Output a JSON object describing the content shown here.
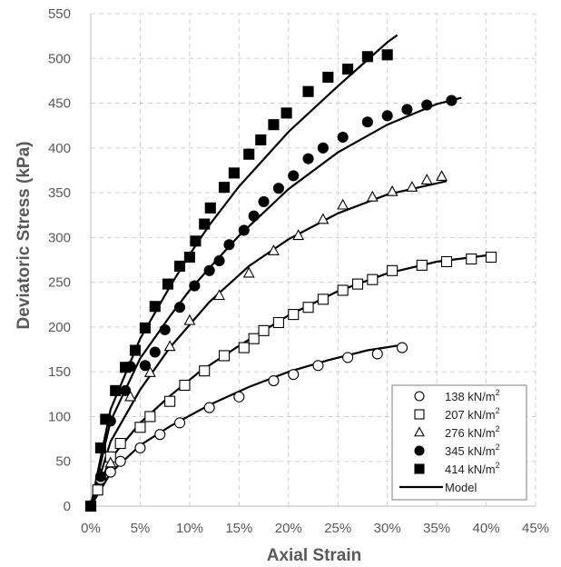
{
  "chart_data": {
    "type": "scatter",
    "title": "",
    "xlabel": "Axial Strain",
    "ylabel": "Deviatoric Stress (kPa)",
    "xlim": [
      0,
      0.45
    ],
    "ylim": [
      0,
      550
    ],
    "x_ticks": [
      0,
      0.05,
      0.1,
      0.15,
      0.2,
      0.25,
      0.3,
      0.35,
      0.4,
      0.45
    ],
    "x_tick_labels": [
      "0%",
      "5%",
      "10%",
      "15%",
      "20%",
      "25%",
      "30%",
      "35%",
      "40%",
      "45%"
    ],
    "y_ticks": [
      0,
      50,
      100,
      150,
      200,
      250,
      300,
      350,
      400,
      450,
      500,
      550
    ],
    "y_tick_labels": [
      "0",
      "50",
      "100",
      "150",
      "200",
      "250",
      "300",
      "350",
      "400",
      "450",
      "500",
      "550"
    ],
    "grid": "dashed",
    "legend_position": "bottom-right",
    "series": [
      {
        "name": "138 kN/m",
        "superscript": "2",
        "marker": "circle-open",
        "x": [
          0.0,
          0.01,
          0.02,
          0.03,
          0.05,
          0.07,
          0.09,
          0.12,
          0.15,
          0.185,
          0.205,
          0.23,
          0.26,
          0.29,
          0.315
        ],
        "y": [
          0,
          30,
          38,
          50,
          65,
          80,
          93,
          110,
          122,
          140,
          147,
          157,
          166,
          170,
          177
        ]
      },
      {
        "name": "207 kN/m",
        "superscript": "2",
        "marker": "square-open",
        "x": [
          0.0,
          0.007,
          0.02,
          0.03,
          0.05,
          0.06,
          0.08,
          0.095,
          0.115,
          0.135,
          0.155,
          0.165,
          0.175,
          0.19,
          0.205,
          0.22,
          0.235,
          0.255,
          0.27,
          0.285,
          0.305,
          0.335,
          0.36,
          0.385,
          0.405
        ],
        "y": [
          0,
          18,
          55,
          70,
          88,
          100,
          117,
          135,
          151,
          168,
          177,
          187,
          196,
          205,
          214,
          222,
          231,
          241,
          248,
          253,
          263,
          269,
          273,
          276,
          278
        ]
      },
      {
        "name": "276 kN/m",
        "superscript": "2",
        "marker": "triangle-open",
        "x": [
          0.0,
          0.01,
          0.02,
          0.04,
          0.06,
          0.08,
          0.1,
          0.13,
          0.16,
          0.185,
          0.21,
          0.235,
          0.255,
          0.285,
          0.305,
          0.325,
          0.34,
          0.355
        ],
        "y": [
          0,
          35,
          48,
          122,
          149,
          178,
          207,
          235,
          260,
          285,
          302,
          320,
          336,
          345,
          351,
          356,
          364,
          368
        ]
      },
      {
        "name": "345 kN/m",
        "superscript": "2",
        "marker": "circle-filled",
        "x": [
          0.0,
          0.01,
          0.02,
          0.035,
          0.04,
          0.055,
          0.065,
          0.075,
          0.09,
          0.105,
          0.12,
          0.13,
          0.14,
          0.155,
          0.165,
          0.175,
          0.19,
          0.205,
          0.22,
          0.235,
          0.255,
          0.28,
          0.3,
          0.32,
          0.34,
          0.365
        ],
        "y": [
          0,
          33,
          95,
          129,
          156,
          157,
          172,
          197,
          222,
          246,
          263,
          274,
          292,
          308,
          324,
          340,
          355,
          369,
          388,
          400,
          412,
          429,
          436,
          443,
          448,
          453
        ]
      },
      {
        "name": "414 kN/m",
        "superscript": "2",
        "marker": "square-filled",
        "x": [
          0.0,
          0.01,
          0.015,
          0.025,
          0.035,
          0.045,
          0.055,
          0.065,
          0.078,
          0.09,
          0.1,
          0.106,
          0.115,
          0.121,
          0.135,
          0.145,
          0.16,
          0.172,
          0.185,
          0.198,
          0.22,
          0.24,
          0.26,
          0.28,
          0.3
        ],
        "y": [
          0,
          65,
          97,
          129,
          155,
          174,
          199,
          223,
          248,
          268,
          278,
          296,
          315,
          333,
          356,
          372,
          393,
          409,
          426,
          439,
          463,
          479,
          488,
          502,
          504
        ]
      },
      {
        "name": "Model",
        "marker": "line",
        "curves": [
          {
            "x": [
              0.0,
              0.02,
              0.05,
              0.08,
              0.12,
              0.16,
              0.2,
              0.24,
              0.28,
              0.315
            ],
            "y": [
              0,
              37,
              68,
              89,
              113,
              133,
              150,
              163,
              174,
              180
            ]
          },
          {
            "x": [
              0.0,
              0.02,
              0.05,
              0.08,
              0.11,
              0.15,
              0.2,
              0.25,
              0.3,
              0.35,
              0.4
            ],
            "y": [
              0,
              53,
              93,
              123,
              150,
              179,
              213,
              240,
              260,
              273,
              280
            ]
          },
          {
            "x": [
              0.0,
              0.02,
              0.05,
              0.08,
              0.12,
              0.16,
              0.2,
              0.25,
              0.3,
              0.36
            ],
            "y": [
              0,
              72,
              130,
              177,
              228,
              268,
              298,
              327,
              348,
              363
            ]
          },
          {
            "x": [
              0.0,
              0.02,
              0.05,
              0.08,
              0.1,
              0.12,
              0.15,
              0.2,
              0.25,
              0.3,
              0.35,
              0.375
            ],
            "y": [
              0,
              95,
              165,
              212,
              241,
              266,
              302,
              354,
              395,
              426,
              449,
              456
            ]
          },
          {
            "x": [
              0.0,
              0.02,
              0.05,
              0.08,
              0.1,
              0.12,
              0.15,
              0.2,
              0.25,
              0.3,
              0.31
            ],
            "y": [
              0,
              108,
              187,
              245,
              281,
              314,
              357,
              418,
              469,
              518,
              526
            ]
          }
        ]
      }
    ]
  }
}
